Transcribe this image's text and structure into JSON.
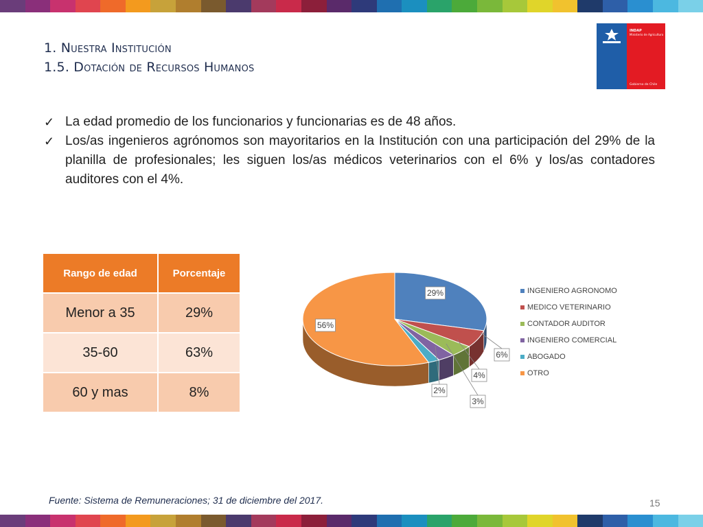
{
  "header": {
    "title_line1": "1. Nuestra Institución",
    "title_line2": "1.5. Dotación de Recursos Humanos"
  },
  "logo": {
    "org": "INDAP",
    "ministry": "Ministerio de Agricultura",
    "government": "Gobierno de Chile",
    "colors": {
      "blue": "#1f5ea8",
      "red": "#e31b23"
    }
  },
  "bullets": [
    "La edad promedio de los funcionarios y funcionarias es de 48 años.",
    "Los/as ingenieros agrónomos son mayoritarios en la Institución con una participación del 29% de la planilla de profesionales; les siguen los/as médicos veterinarios con el 6% y los/as contadores auditores con el 4%."
  ],
  "check_icon": "checkmark-icon",
  "age_table": {
    "headers": [
      "Rango de edad",
      "Porcentaje"
    ],
    "rows": [
      [
        "Menor a 35",
        "29%"
      ],
      [
        "35-60",
        "63%"
      ],
      [
        "60 y mas",
        "8%"
      ]
    ]
  },
  "chart_data": {
    "type": "pie",
    "categories": [
      "INGENIERO AGRONOMO",
      "MEDICO VETERINARIO",
      "CONTADOR AUDITOR",
      "INGENIERO COMERCIAL",
      "ABOGADO",
      "OTRO"
    ],
    "values": [
      29,
      6,
      4,
      3,
      2,
      56
    ],
    "data_labels": [
      "29%",
      "6%",
      "4%",
      "3%",
      "2%",
      "56%"
    ],
    "colors": [
      "#4f81bd",
      "#c0504d",
      "#9bbb59",
      "#8064a2",
      "#4bacc6",
      "#f79646"
    ],
    "legend_position": "right",
    "style": "3d"
  },
  "footer": {
    "source": "Fuente: Sistema de Remuneraciones; 31 de diciembre del 2017.",
    "page_number": "15"
  },
  "stripe_colors": [
    "#6a3d7a",
    "#8a2f7a",
    "#c8326e",
    "#e0454f",
    "#ef6a2a",
    "#f39a1e",
    "#c7a23a",
    "#b07e2e",
    "#7a5a2e",
    "#4b3a6d",
    "#a33a5c",
    "#c92a4a",
    "#8c1f3a",
    "#5a2a6a",
    "#2e3a7a",
    "#1f6fb0",
    "#1b8fbf",
    "#2aa36a",
    "#4caa3a",
    "#7ab83a",
    "#a7c83a",
    "#e0d52a",
    "#f1c22e",
    "#1f3a6a",
    "#2e5fa8",
    "#2a8fd0",
    "#4cb8e0",
    "#7ad0e8"
  ]
}
